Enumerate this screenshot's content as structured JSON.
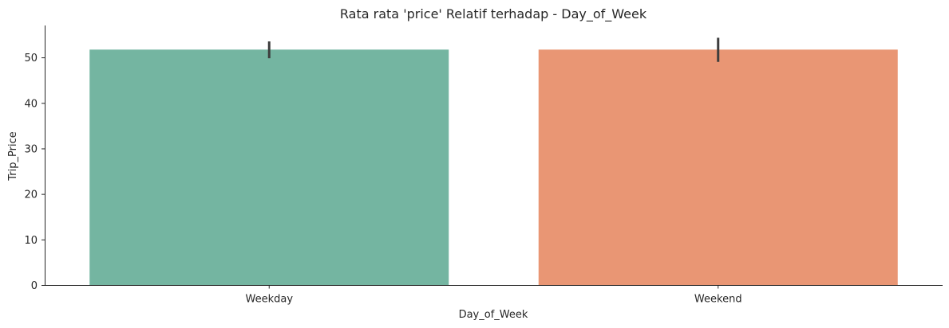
{
  "chart_data": {
    "type": "bar",
    "title": "Rata rata 'price' Relatif terhadap - Day_of_Week",
    "xlabel": "Day_of_Week",
    "ylabel": "Trip_Price",
    "categories": [
      "Weekday",
      "Weekend"
    ],
    "values": [
      51.8,
      51.8
    ],
    "error_bars": [
      {
        "low": 49.9,
        "high": 53.6
      },
      {
        "low": 49.1,
        "high": 54.4
      }
    ],
    "colors": [
      "#74b5a1",
      "#e99674"
    ],
    "error_color": "#3d3d3d",
    "ylim": [
      0,
      57.1
    ],
    "yticks": [
      0,
      10,
      20,
      30,
      40,
      50
    ],
    "grid": false,
    "legend": "none"
  }
}
